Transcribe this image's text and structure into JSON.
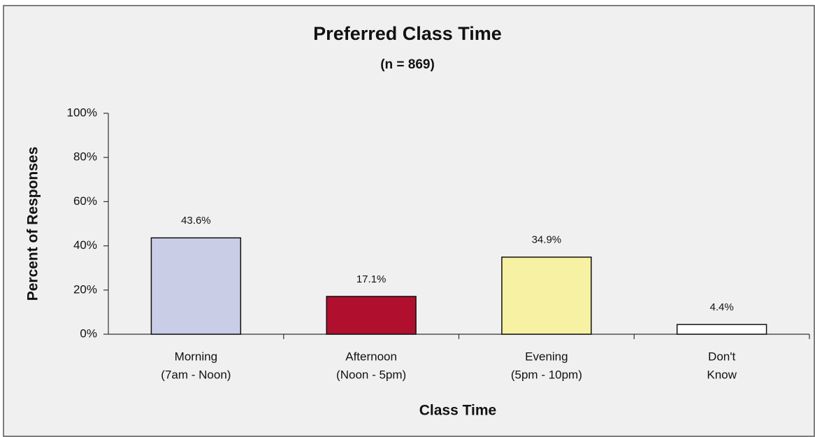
{
  "chart_data": {
    "type": "bar",
    "title": "Preferred Class Time",
    "subtitle": "(n = 869)",
    "x_label": "Class Time",
    "y_label": "Percent of Responses",
    "categories": [
      [
        "Morning",
        "(7am - Noon)"
      ],
      [
        "Afternoon",
        "(Noon - 5pm)"
      ],
      [
        "Evening",
        "(5pm - 10pm)"
      ],
      [
        "Don't",
        "Know"
      ]
    ],
    "values": [
      43.6,
      17.1,
      34.9,
      4.4
    ],
    "value_labels": [
      "43.6%",
      "17.1%",
      "34.9%",
      "4.4%"
    ],
    "colors": [
      "#c9cde6",
      "#b0102e",
      "#f6f1a3",
      "#ffffff"
    ],
    "ylim": [
      0,
      100
    ],
    "yticks": [
      {
        "value": 0,
        "label": "0%"
      },
      {
        "value": 20,
        "label": "20%"
      },
      {
        "value": 40,
        "label": "40%"
      },
      {
        "value": 60,
        "label": "60%"
      },
      {
        "value": 80,
        "label": "80%"
      },
      {
        "value": 100,
        "label": "100%"
      }
    ],
    "grid": false
  }
}
